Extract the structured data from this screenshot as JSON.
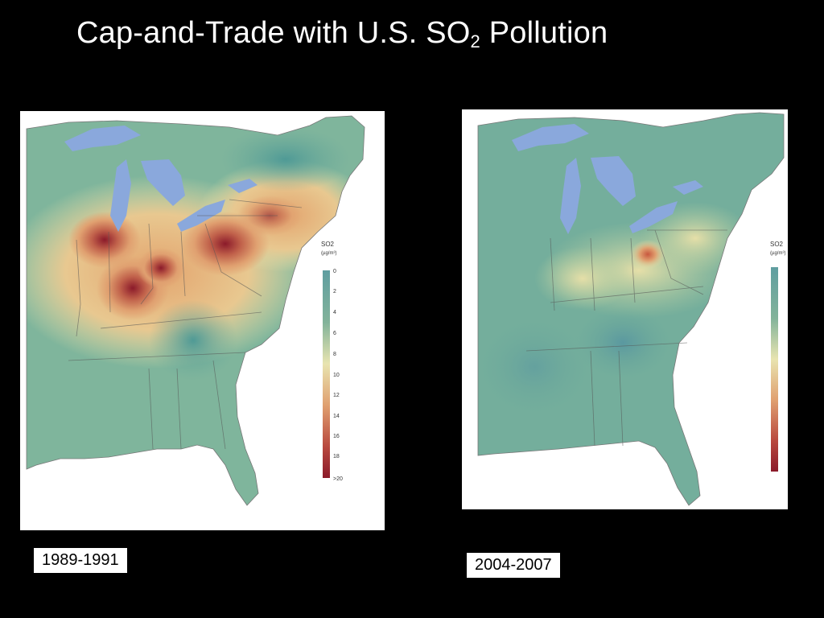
{
  "slide": {
    "title_main": "Cap-and-Trade with U.S. SO",
    "title_sub": "2",
    "title_end": " Pollution"
  },
  "maps": [
    {
      "caption": "1989-1991",
      "legend_title": "SO2",
      "legend_unit": "(µg/m³)",
      "legend_ticks": [
        "0",
        "2",
        "4",
        "6",
        "8",
        "10",
        "12",
        "14",
        "16",
        "18",
        ">20"
      ]
    },
    {
      "caption": "2004-2007",
      "legend_title": "SO2",
      "legend_unit": "(µg/m³)"
    }
  ],
  "colors": {
    "water": "#8aa8dc",
    "low": "#6aa99a",
    "mid": "#e8e4b0",
    "high": "#d08050",
    "max": "#8b1a2a"
  }
}
